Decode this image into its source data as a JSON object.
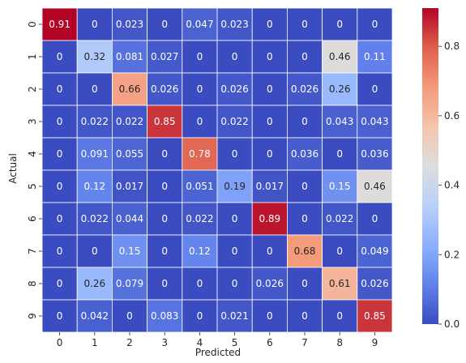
{
  "chart_data": {
    "type": "heatmap",
    "xlabel": "Predicted",
    "ylabel": "Actual",
    "x_categories": [
      "0",
      "1",
      "2",
      "3",
      "4",
      "5",
      "6",
      "7",
      "8",
      "9"
    ],
    "y_categories": [
      "0",
      "1",
      "2",
      "3",
      "4",
      "5",
      "6",
      "7",
      "8",
      "9"
    ],
    "values": [
      [
        0.91,
        0,
        0.023,
        0,
        0.047,
        0.023,
        0,
        0,
        0,
        0
      ],
      [
        0,
        0.32,
        0.081,
        0.027,
        0,
        0,
        0,
        0,
        0.46,
        0.11
      ],
      [
        0,
        0,
        0.66,
        0.026,
        0,
        0.026,
        0,
        0.026,
        0.26,
        0
      ],
      [
        0,
        0.022,
        0.022,
        0.85,
        0,
        0.022,
        0,
        0,
        0.043,
        0.043
      ],
      [
        0,
        0.091,
        0.055,
        0,
        0.78,
        0,
        0,
        0.036,
        0,
        0.036
      ],
      [
        0,
        0.12,
        0.017,
        0,
        0.051,
        0.19,
        0.017,
        0,
        0.15,
        0.46
      ],
      [
        0,
        0.022,
        0.044,
        0,
        0.022,
        0,
        0.89,
        0,
        0.022,
        0
      ],
      [
        0,
        0,
        0.15,
        0,
        0.12,
        0,
        0,
        0.68,
        0,
        0.049
      ],
      [
        0,
        0.26,
        0.079,
        0,
        0,
        0,
        0.026,
        0,
        0.61,
        0.026
      ],
      [
        0,
        0.042,
        0,
        0.083,
        0,
        0.021,
        0,
        0,
        0,
        0.85
      ]
    ],
    "colorbar": {
      "colormap": "coolwarm",
      "vmin": 0.0,
      "vmax": 0.91,
      "ticks": [
        0.0,
        0.2,
        0.4,
        0.6,
        0.8
      ],
      "tick_labels": [
        "0.0",
        "0.2",
        "0.4",
        "0.6",
        "0.8"
      ]
    },
    "cell_border_color": "#ffffff"
  }
}
